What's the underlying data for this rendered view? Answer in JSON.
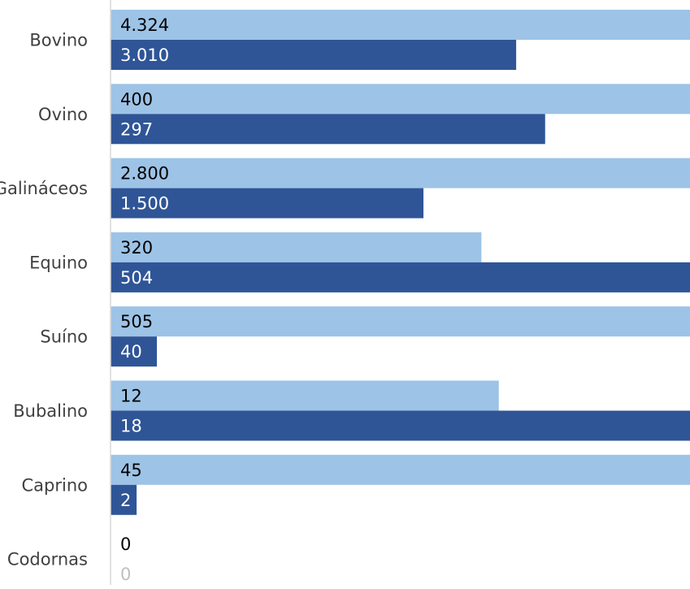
{
  "chart_data": {
    "type": "bar",
    "orientation": "horizontal",
    "categories": [
      "Bovino",
      "Ovino",
      "Galináceos",
      "Equino",
      "Suíno",
      "Bubalino",
      "Caprino",
      "Codornas"
    ],
    "series": [
      {
        "values": [
          4324,
          400,
          2800,
          320,
          505,
          12,
          45,
          0
        ],
        "labels": [
          "4.324",
          "400",
          "2.800",
          "320",
          "505",
          "12",
          "45",
          "0"
        ],
        "color": "#9dc3e6",
        "fill_fraction": [
          1.0,
          1.0,
          1.0,
          0.64,
          1.0,
          0.67,
          1.0,
          0.0
        ],
        "label_color": "#000000"
      },
      {
        "values": [
          3010,
          297,
          1500,
          504,
          40,
          18,
          2,
          0
        ],
        "labels": [
          "3.010",
          "297",
          "1.500",
          "504",
          "40",
          "18",
          "2",
          "0"
        ],
        "color": "#2f5597",
        "fill_fraction": [
          0.7,
          0.75,
          0.54,
          1.0,
          0.08,
          1.0,
          0.045,
          0.0
        ],
        "label_color": "#ffffff",
        "zero_label_color": "#bfbfbf"
      }
    ],
    "axis_color": "#d9d9d9",
    "grid": false,
    "legend": "none"
  }
}
